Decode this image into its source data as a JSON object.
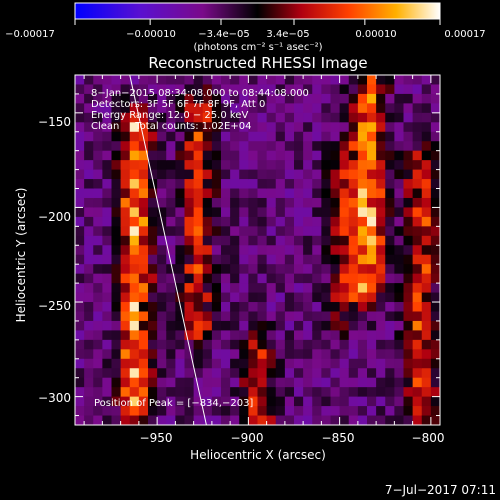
{
  "chart_data": {
    "type": "heatmap",
    "title": "Reconstructed RHESSI Image",
    "xlabel": "Heliocentric X (arcsec)",
    "ylabel": "Heliocentric Y (arcsec)",
    "xlim": [
      -995,
      -795
    ],
    "ylim": [
      -315,
      -130
    ],
    "x_ticks": [
      -950,
      -900,
      -850,
      -800
    ],
    "y_ticks": [
      -150,
      -200,
      -250,
      -300
    ],
    "x_tick_labels": [
      "−950",
      "−900",
      "−850",
      "−800"
    ],
    "y_tick_labels": [
      "−150",
      "−200",
      "−250",
      "−300"
    ],
    "colorbar": {
      "range": [
        -0.00017,
        0.00017
      ],
      "tick_labels": [
        "−0.00017",
        "−0.00010",
        "−3.4e−05",
        "3.4e−05",
        "0.00010",
        "0.00017"
      ],
      "unit_label": "(photons cm⁻² s⁻¹ asec⁻²)",
      "colors": [
        "#0000ff",
        "#6a0cb8",
        "#7a0a8a",
        "#000000",
        "#b0000a",
        "#ff4000",
        "#ffa000",
        "#ffff60",
        "#ffffff"
      ]
    },
    "annotations": [
      "8−Jan−2015 08:34:08.000 to 08:44:08.000",
      "Detectors: 3F 5F 6F 7F 8F 9F, Att 0",
      "Energy Range: 12.0 − 25.0 keV",
      "Clean     Total counts: 1.02E+04"
    ],
    "peak_label": "Position of Peak = [−834,−203]",
    "peak": [
      -834,
      -203
    ],
    "limb_line": [
      [
        -965,
        -130
      ],
      [
        -923,
        -315
      ]
    ],
    "bright_ridges": [
      {
        "x": -962,
        "y_range": [
          -160,
          -300
        ],
        "intensity": 0.00017
      },
      {
        "x": -928,
        "y_range": [
          -150,
          -260
        ],
        "intensity": 0.00012
      },
      {
        "x": -895,
        "y_range": [
          -280,
          -315
        ],
        "intensity": 0.00012
      },
      {
        "x": -848,
        "y_range": [
          -180,
          -250
        ],
        "intensity": 0.0001
      },
      {
        "x": -834,
        "y_range": [
          -140,
          -240
        ],
        "intensity": 0.00017
      },
      {
        "x": -805,
        "y_range": [
          -180,
          -315
        ],
        "intensity": 0.00012
      }
    ],
    "grid": false
  },
  "footer": {
    "timestamp": "7−Jul−2017 07:11"
  }
}
